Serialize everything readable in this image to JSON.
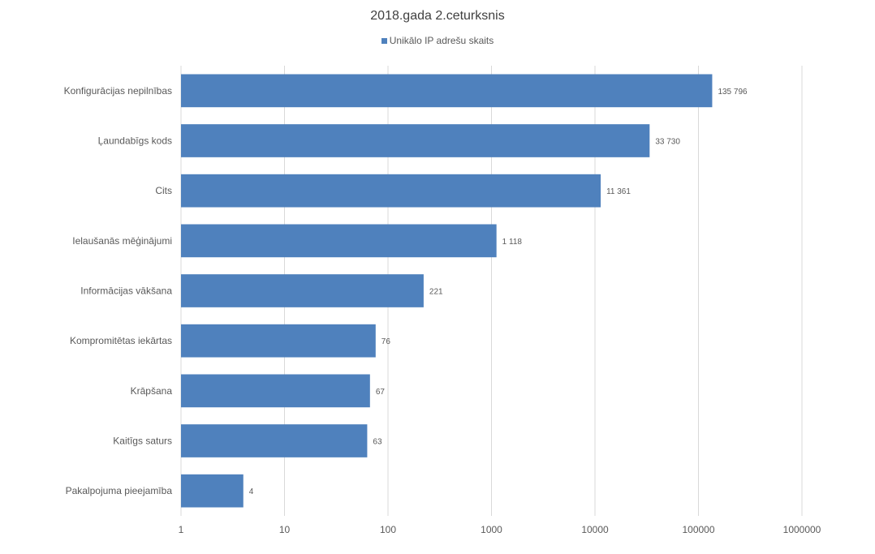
{
  "chart_data": {
    "type": "bar",
    "orientation": "horizontal",
    "title": "2018.gada 2.ceturksnis",
    "xscale": "log",
    "xlim": [
      1,
      1000000
    ],
    "xticks": [
      "1",
      "10",
      "100",
      "1000",
      "10000",
      "100000",
      "1000000"
    ],
    "grid": true,
    "legend_position": "top",
    "bar_color": "#4F81BD",
    "categories": [
      "Konfigurācijas nepilnības",
      "Ļaundabīgs kods",
      "Cits",
      "Ielaušanās mēģinājumi",
      "Informācijas vākšana",
      "Kompromitētas iekārtas",
      "Krāpšana",
      "Kaitīgs saturs",
      "Pakalpojuma pieejamība"
    ],
    "series": [
      {
        "name": "Unikālo IP adrešu skaits",
        "values": [
          135796,
          33730,
          11361,
          1118,
          221,
          76,
          67,
          63,
          4
        ],
        "labels": [
          "135 796",
          "33 730",
          "11 361",
          "1 118",
          "221",
          "76",
          "67",
          "63",
          "4"
        ]
      }
    ]
  }
}
